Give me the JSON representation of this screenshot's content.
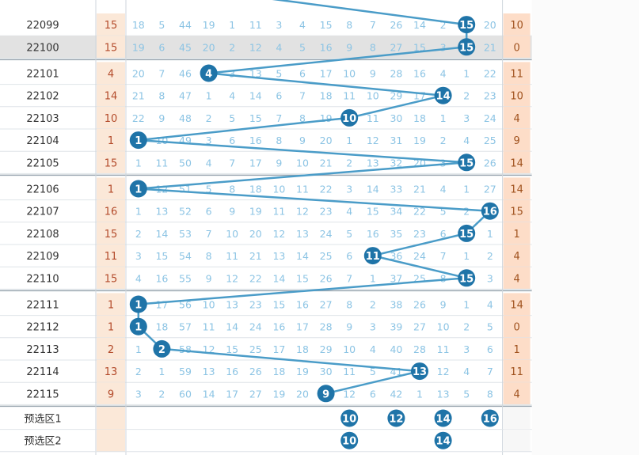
{
  "chart_data": {
    "type": "table",
    "title": "",
    "columns": 16,
    "rows": [
      {
        "period": "22099",
        "value": 15,
        "cells": [
          "18",
          "5",
          "44",
          "19",
          "1",
          "11",
          "3",
          "4",
          "15",
          "8",
          "7",
          "26",
          "14",
          "2",
          "15",
          "20"
        ],
        "tail": "10"
      },
      {
        "period": "22100",
        "value": 15,
        "cells": [
          "19",
          "6",
          "45",
          "20",
          "2",
          "12",
          "4",
          "5",
          "16",
          "9",
          "8",
          "27",
          "15",
          "3",
          "15",
          "21"
        ],
        "tail": "0"
      },
      {
        "period": "22101",
        "value": 4,
        "cells": [
          "20",
          "7",
          "46",
          "4",
          "3",
          "13",
          "5",
          "6",
          "17",
          "10",
          "9",
          "28",
          "16",
          "4",
          "1",
          "22"
        ],
        "tail": "11"
      },
      {
        "period": "22102",
        "value": 14,
        "cells": [
          "21",
          "8",
          "47",
          "1",
          "4",
          "14",
          "6",
          "7",
          "18",
          "11",
          "10",
          "29",
          "17",
          "14",
          "2",
          "23"
        ],
        "tail": "10"
      },
      {
        "period": "22103",
        "value": 10,
        "cells": [
          "22",
          "9",
          "48",
          "2",
          "5",
          "15",
          "7",
          "8",
          "19",
          "10",
          "11",
          "30",
          "18",
          "1",
          "3",
          "24"
        ],
        "tail": "4"
      },
      {
        "period": "22104",
        "value": 1,
        "cells": [
          "1",
          "10",
          "49",
          "3",
          "6",
          "16",
          "8",
          "9",
          "20",
          "1",
          "12",
          "31",
          "19",
          "2",
          "4",
          "25"
        ],
        "tail": "9"
      },
      {
        "period": "22105",
        "value": 15,
        "cells": [
          "1",
          "11",
          "50",
          "4",
          "7",
          "17",
          "9",
          "10",
          "21",
          "2",
          "13",
          "32",
          "20",
          "3",
          "15",
          "26"
        ],
        "tail": "14"
      },
      {
        "period": "22106",
        "value": 1,
        "cells": [
          "1",
          "12",
          "51",
          "5",
          "8",
          "18",
          "10",
          "11",
          "22",
          "3",
          "14",
          "33",
          "21",
          "4",
          "1",
          "27"
        ],
        "tail": "14"
      },
      {
        "period": "22107",
        "value": 16,
        "cells": [
          "1",
          "13",
          "52",
          "6",
          "9",
          "19",
          "11",
          "12",
          "23",
          "4",
          "15",
          "34",
          "22",
          "5",
          "2",
          "16"
        ],
        "tail": "15"
      },
      {
        "period": "22108",
        "value": 15,
        "cells": [
          "2",
          "14",
          "53",
          "7",
          "10",
          "20",
          "12",
          "13",
          "24",
          "5",
          "16",
          "35",
          "23",
          "6",
          "15",
          "1"
        ],
        "tail": "1"
      },
      {
        "period": "22109",
        "value": 11,
        "cells": [
          "3",
          "15",
          "54",
          "8",
          "11",
          "21",
          "13",
          "14",
          "25",
          "6",
          "11",
          "36",
          "24",
          "7",
          "1",
          "2"
        ],
        "tail": "4"
      },
      {
        "period": "22110",
        "value": 15,
        "cells": [
          "4",
          "16",
          "55",
          "9",
          "12",
          "22",
          "14",
          "15",
          "26",
          "7",
          "1",
          "37",
          "25",
          "8",
          "15",
          "3"
        ],
        "tail": "4"
      },
      {
        "period": "22111",
        "value": 1,
        "cells": [
          "1",
          "17",
          "56",
          "10",
          "13",
          "23",
          "15",
          "16",
          "27",
          "8",
          "2",
          "38",
          "26",
          "9",
          "1",
          "4"
        ],
        "tail": "14"
      },
      {
        "period": "22112",
        "value": 1,
        "cells": [
          "1",
          "18",
          "57",
          "11",
          "14",
          "24",
          "16",
          "17",
          "28",
          "9",
          "3",
          "39",
          "27",
          "10",
          "2",
          "5"
        ],
        "tail": "0"
      },
      {
        "period": "22113",
        "value": 2,
        "cells": [
          "1",
          "2",
          "58",
          "12",
          "15",
          "25",
          "17",
          "18",
          "29",
          "10",
          "4",
          "40",
          "28",
          "11",
          "3",
          "6"
        ],
        "tail": "1"
      },
      {
        "period": "22114",
        "value": 13,
        "cells": [
          "2",
          "1",
          "59",
          "13",
          "16",
          "26",
          "18",
          "19",
          "30",
          "11",
          "5",
          "41",
          "13",
          "12",
          "4",
          "7"
        ],
        "tail": "11"
      },
      {
        "period": "22115",
        "value": 9,
        "cells": [
          "3",
          "2",
          "60",
          "14",
          "17",
          "27",
          "19",
          "20",
          "9",
          "12",
          "6",
          "42",
          "1",
          "13",
          "5",
          "8"
        ],
        "tail": "4"
      }
    ],
    "preselect": [
      {
        "label": "预选区1",
        "values": [
          10,
          12,
          14,
          16
        ]
      },
      {
        "label": "预选区2",
        "values": [
          10,
          14
        ]
      }
    ]
  },
  "colors": {
    "ball": "#1f74a8",
    "line": "#4a9cc8",
    "missText": "#8cc4e4",
    "valueCol": "#fbe8d8",
    "tailCol": "#fdddc8",
    "highlight": "#e2e2e2",
    "grid": "#dfe4e8",
    "separator": "#9aa6b0"
  }
}
